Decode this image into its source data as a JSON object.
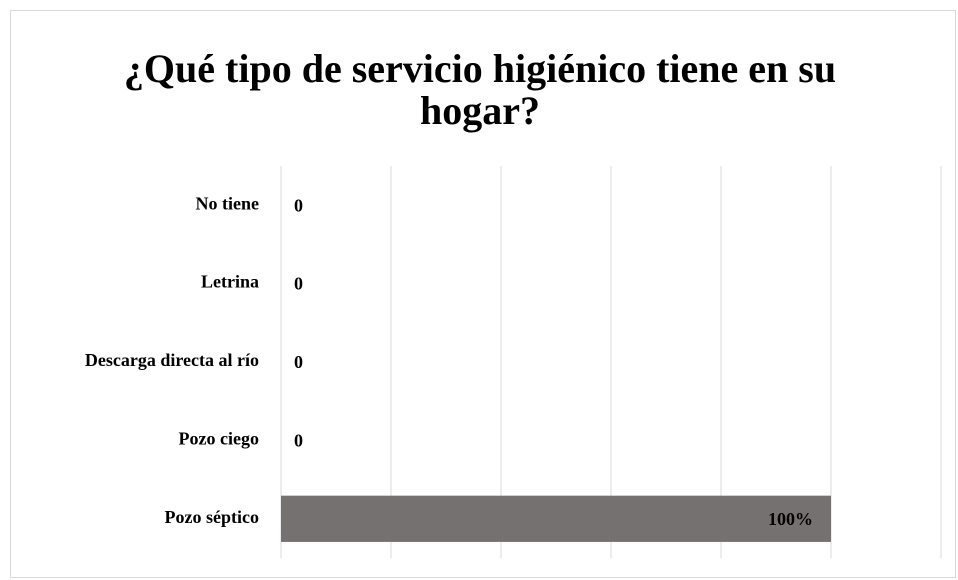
{
  "chart_data": {
    "type": "hbar",
    "title": "¿Qué tipo de servicio higiénico tiene en su hogar?",
    "categories": [
      "No tiene",
      "Letrina",
      "Descarga directa al río",
      "Pozo ciego",
      "Pozo séptico"
    ],
    "values": [
      0,
      0,
      0,
      0,
      100
    ],
    "value_labels": [
      "0",
      "0",
      "0",
      "0",
      "100%"
    ],
    "color": "#767171",
    "xlim": [
      0,
      120
    ],
    "xticks": [
      0,
      20,
      40,
      60,
      80,
      100,
      120
    ],
    "grid": true
  }
}
